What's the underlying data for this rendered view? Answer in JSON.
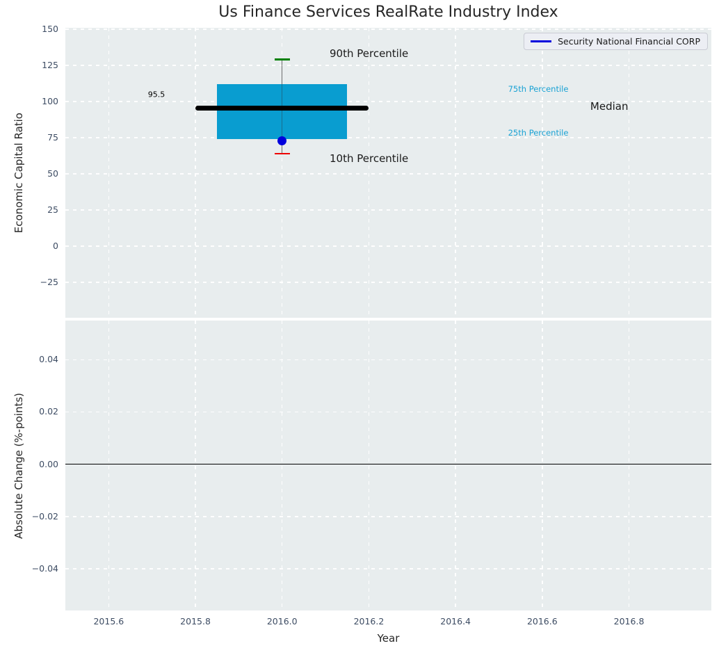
{
  "title": "Us Finance Services RealRate Industry Index",
  "chart_data": [
    {
      "type": "boxplot",
      "title": "Us Finance Services RealRate Industry Index",
      "ylabel": "Economic Capital Ratio",
      "xlabel": "",
      "xlim": [
        2015.5,
        2016.99
      ],
      "ylim": [
        -49.5,
        151
      ],
      "grid": "white-dashed",
      "yticks": {
        "values": [
          150,
          125,
          100,
          75,
          50,
          25,
          0,
          -25
        ],
        "labels": [
          "150",
          "125",
          "100",
          "75",
          "50",
          "25",
          "0",
          "−25"
        ]
      },
      "xticks": {
        "values": [
          2015.6,
          2015.8,
          2016.0,
          2016.2,
          2016.4,
          2016.6,
          2016.8
        ],
        "labels": [
          "2015.6",
          "2015.8",
          "2016.0",
          "2016.2",
          "2016.4",
          "2016.6",
          "2016.8"
        ],
        "show_labels": false
      },
      "legend": {
        "position": "upper right",
        "entries": [
          {
            "label": "Security National Financial CORP",
            "color": "#0000dd"
          }
        ]
      },
      "box": {
        "year": 2016.0,
        "p90": 129,
        "p75": 112,
        "median": 95.5,
        "p25": 74,
        "p10": 64,
        "median_label": "95.5",
        "box_span_years": [
          2015.85,
          2016.15
        ],
        "median_span_years": [
          2015.8,
          2016.2
        ],
        "colors": {
          "box": "#099dd0",
          "median": "#000000",
          "whisker": "#6e6e6e",
          "p90_cap": "#008000",
          "p10_cap": "#ee0000"
        }
      },
      "company_point": {
        "year": 2016.0,
        "value": 73,
        "color": "#0000dd",
        "series": "Security National Financial CORP"
      },
      "annotations": [
        {
          "name": "annotation-90th-percentile",
          "text": "90th Percentile",
          "fx": 0.47,
          "fy": 0.088,
          "color": "#1a1a1a",
          "size": 15
        },
        {
          "name": "annotation-10th-percentile",
          "text": "10th Percentile",
          "fx": 0.47,
          "fy": 0.45,
          "color": "#1a1a1a",
          "size": 15
        },
        {
          "name": "annotation-75th-percentile",
          "text": "75th Percentile",
          "fx": 0.732,
          "fy": 0.21,
          "color": "#1aa2d4",
          "size": 11.5
        },
        {
          "name": "annotation-25th-percentile",
          "text": "25th Percentile",
          "fx": 0.732,
          "fy": 0.361,
          "color": "#1aa2d4",
          "size": 11.5
        },
        {
          "name": "annotation-median",
          "text": "Median",
          "fx": 0.842,
          "fy": 0.271,
          "color": "#1a1a1a",
          "size": 15
        },
        {
          "name": "annotation-median-value",
          "text": "95.5",
          "fx": 0.141,
          "fy": 0.23,
          "color": "#000000",
          "size": 11
        }
      ]
    },
    {
      "type": "line",
      "ylabel": "Absolute Change (%-points)",
      "xlabel": "Year",
      "xlim": [
        2015.5,
        2016.99
      ],
      "ylim": [
        -0.056,
        0.055
      ],
      "grid": "white-dashed",
      "yticks": {
        "values": [
          0.04,
          0.02,
          0,
          -0.02,
          -0.04
        ],
        "labels": [
          "0.04",
          "0.02",
          "0.00",
          "−0.02",
          "−0.04"
        ]
      },
      "xticks": {
        "values": [
          2015.6,
          2015.8,
          2016.0,
          2016.2,
          2016.4,
          2016.6,
          2016.8
        ],
        "labels": [
          "2015.6",
          "2015.8",
          "2016.0",
          "2016.2",
          "2016.4",
          "2016.6",
          "2016.8"
        ],
        "show_labels": true
      },
      "zero_line": {
        "value": 0,
        "color": "#000000"
      },
      "series": []
    }
  ]
}
